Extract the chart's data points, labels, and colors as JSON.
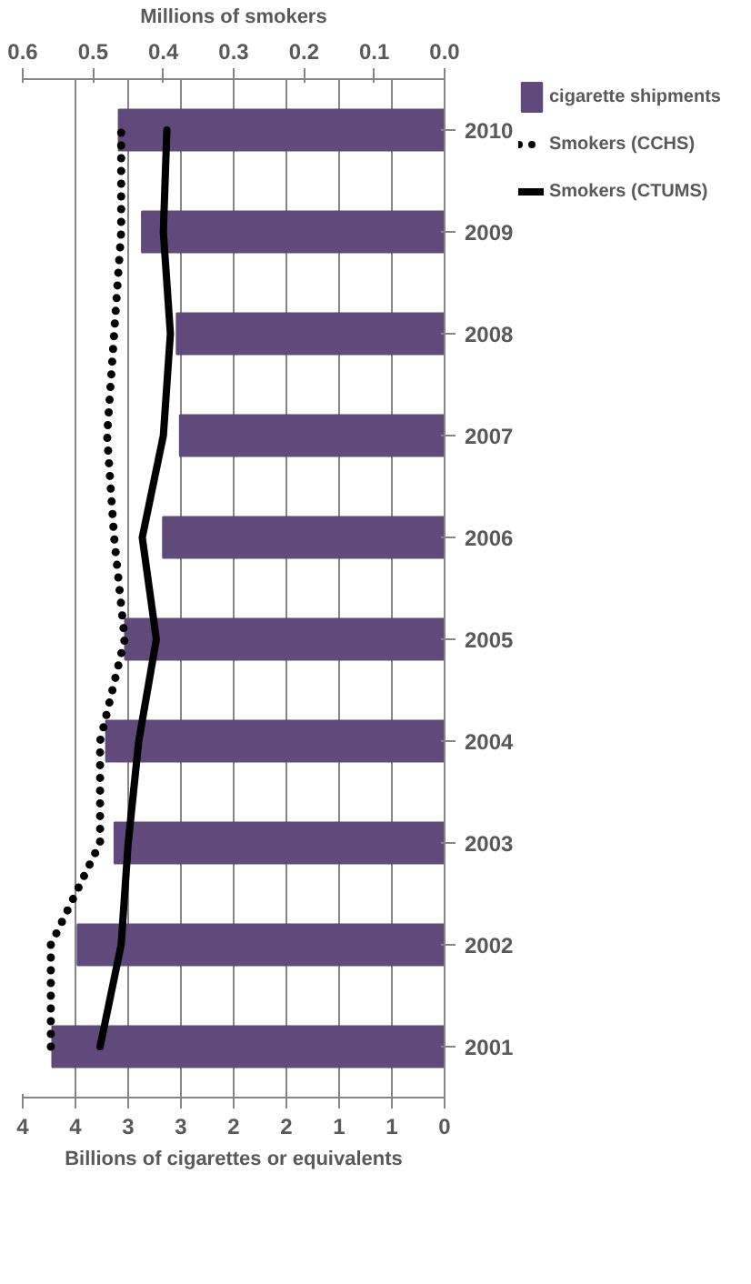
{
  "chart_data": {
    "type": "bar",
    "orientation": "horizontal",
    "categories": [
      "2010",
      "2009",
      "2008",
      "2007",
      "2006",
      "2005",
      "2004",
      "2003",
      "2002",
      "2001"
    ],
    "xlabel": "Billions of cigarettes or equivalents",
    "x2label": "Millions of smokers",
    "xlim": [
      4,
      0
    ],
    "xticks": [
      {
        "value": 4,
        "label": "4"
      },
      {
        "value": 3.5,
        "label": "4"
      },
      {
        "value": 3,
        "label": "3"
      },
      {
        "value": 2.5,
        "label": "3"
      },
      {
        "value": 2,
        "label": "2"
      },
      {
        "value": 1.5,
        "label": "2"
      },
      {
        "value": 1,
        "label": "1"
      },
      {
        "value": 0.5,
        "label": "1"
      },
      0
    ],
    "x2lim": [
      0.6,
      0
    ],
    "x2ticks": [
      0.6,
      0.5,
      0.4,
      0.3,
      0.2,
      0.1,
      {
        "value": 0,
        "label": "0.0"
      }
    ],
    "grid": "x",
    "legend": "right",
    "series": [
      {
        "name": "cigarette shipments",
        "color": "#604a7b",
        "values": [
          3.09,
          2.87,
          2.54,
          2.51,
          2.67,
          3.03,
          3.21,
          3.13,
          3.48,
          3.72
        ]
      },
      {
        "name": "Smokers (CCHS)",
        "type": "line",
        "axis": "x2",
        "color": "#000000",
        "line_style": "dotted",
        "values": [
          0.46,
          0.46,
          0.47,
          0.48,
          0.47,
          0.455,
          0.49,
          0.49,
          0.56,
          0.56
        ]
      },
      {
        "name": "Smokers (CTUMS)",
        "type": "line",
        "axis": "x2",
        "color": "#000000",
        "line_style": "solid",
        "values": [
          0.395,
          0.4,
          0.39,
          0.4,
          0.43,
          0.41,
          0.435,
          0.45,
          0.46,
          0.49
        ]
      }
    ]
  }
}
